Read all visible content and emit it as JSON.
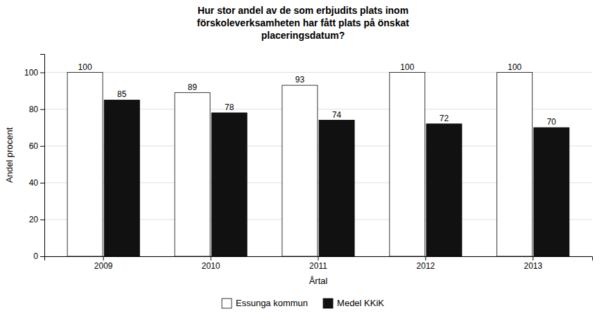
{
  "chart_data": {
    "type": "bar",
    "title": "Hur stor andel av de som erbjudits plats inom\nförskoleverksamheten har fått plats på önskat\nplaceringsdatum?",
    "x_label": "Årtal",
    "y_label": "Andel procent",
    "categories": [
      "2009",
      "2010",
      "2011",
      "2012",
      "2013"
    ],
    "series": [
      {
        "name": "Essunga kommun",
        "color": "white",
        "values": [
          100,
          89,
          93,
          100,
          100
        ]
      },
      {
        "name": "Medel KKiK",
        "color": "#111111",
        "values": [
          85,
          78,
          74,
          72,
          70
        ]
      }
    ],
    "ylim": [
      0,
      110
    ],
    "yticks": [
      0,
      20,
      40,
      60,
      80,
      100
    ],
    "grid": true,
    "legend": "bottom",
    "data_labels": true
  }
}
